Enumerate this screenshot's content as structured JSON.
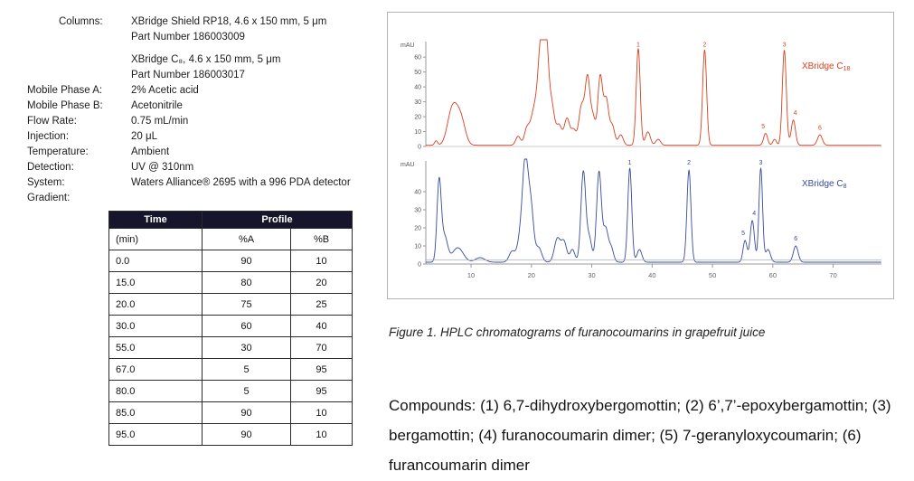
{
  "conditions": {
    "rows": [
      {
        "label": "Columns:",
        "value": "XBridge Shield RP18, 4.6 x 150 mm, 5 μm",
        "indent": true
      },
      {
        "label": "",
        "value": "Part Number 186003009",
        "indent": true
      },
      {
        "label": "",
        "value": "XBridge C₈, 4.6 x 150 mm, 5 μm",
        "gap": true,
        "indent": true
      },
      {
        "label": "",
        "value": "Part Number 186003017",
        "indent": true
      },
      {
        "label": "Mobile Phase A:",
        "value": "2% Acetic acid"
      },
      {
        "label": "Mobile Phase B:",
        "value": "Acetonitrile"
      },
      {
        "label": "Flow Rate:",
        "value": "0.75 mL/min"
      },
      {
        "label": "Injection:",
        "value": "20 μL"
      },
      {
        "label": "Temperature:",
        "value": "Ambient"
      },
      {
        "label": "Detection:",
        "value": "UV @ 310nm"
      },
      {
        "label": "System:",
        "value": "Waters Alliance® 2695 with a 996 PDA detector"
      },
      {
        "label": "Gradient:",
        "value": ""
      }
    ]
  },
  "gradient": {
    "header_time": "Time",
    "header_profile": "Profile",
    "subheader": [
      "(min)",
      "%A",
      "%B"
    ],
    "rows": [
      [
        "0.0",
        "90",
        "10"
      ],
      [
        "15.0",
        "80",
        "20"
      ],
      [
        "20.0",
        "75",
        "25"
      ],
      [
        "30.0",
        "60",
        "40"
      ],
      [
        "55.0",
        "30",
        "70"
      ],
      [
        "67.0",
        "5",
        "95"
      ],
      [
        "80.0",
        "5",
        "95"
      ],
      [
        "85.0",
        "90",
        "10"
      ],
      [
        "95.0",
        "90",
        "10"
      ]
    ]
  },
  "figure": {
    "caption": "Figure 1.  HPLC chromatograms of furanocoumarins in grapefruit juice",
    "compounds": "Compounds: (1) 6,7-dihydroxybergomottin; (2) 6’,7’-epoxybergamottin; (3) bergamottin; (4) furanocoumarin dimer; (5) 7-geranyloxycoumarin; (6) furancoumarin dimer"
  },
  "chart_data": {
    "type": "line",
    "title": "HPLC chromatograms of furanocoumarins in grapefruit juice",
    "x_axis": {
      "min": 2.5,
      "max": 78,
      "unit": "min",
      "ticks": [
        10,
        20,
        30,
        40,
        50,
        60,
        70
      ]
    },
    "panels": [
      {
        "name": "XBridge C18",
        "name_main": "XBridge C",
        "name_sub": "18",
        "color": "#d8411f",
        "ylabel": "mAU",
        "ylim": [
          0,
          68
        ],
        "yticks": [
          0,
          10,
          20,
          30,
          40,
          50,
          60
        ],
        "baseline": 0.8,
        "peaks": [
          [
            4.2,
            3,
            0.25
          ],
          [
            6.6,
            12,
            0.7
          ],
          [
            7.6,
            22,
            0.9
          ],
          [
            8.6,
            6,
            0.6
          ],
          [
            17.8,
            6,
            0.4
          ],
          [
            19.2,
            9,
            0.4
          ],
          [
            20.6,
            26,
            0.7
          ],
          [
            21.6,
            58,
            0.45
          ],
          [
            22.4,
            64,
            0.4
          ],
          [
            23.3,
            28,
            0.5
          ],
          [
            24.6,
            13,
            0.45
          ],
          [
            25.9,
            18,
            0.45
          ],
          [
            27,
            10,
            0.4
          ],
          [
            28.3,
            26,
            0.45
          ],
          [
            29.3,
            44,
            0.4
          ],
          [
            30.2,
            18,
            0.4
          ],
          [
            31.4,
            46,
            0.4
          ],
          [
            32.4,
            30,
            0.4
          ],
          [
            33.4,
            13,
            0.4
          ],
          [
            34.8,
            7,
            0.4
          ],
          [
            37.7,
            65,
            0.33
          ],
          [
            39.3,
            9,
            0.4
          ],
          [
            41,
            4,
            0.4
          ],
          [
            48.7,
            64,
            0.33
          ],
          [
            58.8,
            8,
            0.33
          ],
          [
            60.3,
            4,
            0.3
          ],
          [
            61.9,
            64,
            0.33
          ],
          [
            63.4,
            17,
            0.35
          ],
          [
            67.8,
            7,
            0.4
          ]
        ],
        "peak_labels": [
          [
            "1",
            37.7,
            66
          ],
          [
            "2",
            48.7,
            66
          ],
          [
            "3",
            61.9,
            66
          ],
          [
            "4",
            63.7,
            20
          ],
          [
            "5",
            58.4,
            11
          ],
          [
            "6",
            67.8,
            10
          ]
        ]
      },
      {
        "name": "XBridge C8",
        "name_main": "XBridge C",
        "name_sub": "8",
        "color": "#3a49a0",
        "ylabel": "mAU",
        "ylim": [
          0,
          55
        ],
        "yticks": [
          0,
          10,
          20,
          30,
          40
        ],
        "baseline": 1.0,
        "overlay_baseline": 2.2,
        "overlay_color": "#a9b0cc",
        "peaks": [
          [
            4.7,
            44,
            0.35
          ],
          [
            5.6,
            14,
            0.5
          ],
          [
            7.8,
            8,
            0.9
          ],
          [
            11.5,
            2.5,
            0.8
          ],
          [
            16.8,
            6,
            0.5
          ],
          [
            18.2,
            14,
            0.5
          ],
          [
            19,
            52,
            0.45
          ],
          [
            19.9,
            30,
            0.45
          ],
          [
            21.2,
            8,
            0.5
          ],
          [
            24.3,
            13,
            0.5
          ],
          [
            25.4,
            11,
            0.45
          ],
          [
            26.8,
            7,
            0.4
          ],
          [
            28.6,
            50,
            0.4
          ],
          [
            29.6,
            13,
            0.4
          ],
          [
            31.2,
            50,
            0.4
          ],
          [
            32.3,
            18,
            0.4
          ],
          [
            33.2,
            8,
            0.4
          ],
          [
            36.3,
            52,
            0.33
          ],
          [
            37.9,
            7,
            0.4
          ],
          [
            46.1,
            51,
            0.33
          ],
          [
            55.4,
            12,
            0.33
          ],
          [
            56.6,
            23,
            0.35
          ],
          [
            58,
            52,
            0.3
          ],
          [
            59.2,
            7,
            0.4
          ],
          [
            63.8,
            9,
            0.4
          ]
        ],
        "peak_labels": [
          [
            "1",
            36.3,
            54
          ],
          [
            "2",
            46.1,
            54
          ],
          [
            "3",
            58.0,
            54
          ],
          [
            "4",
            56.9,
            26
          ],
          [
            "5",
            55.1,
            15
          ],
          [
            "6",
            63.8,
            12
          ]
        ]
      }
    ]
  }
}
